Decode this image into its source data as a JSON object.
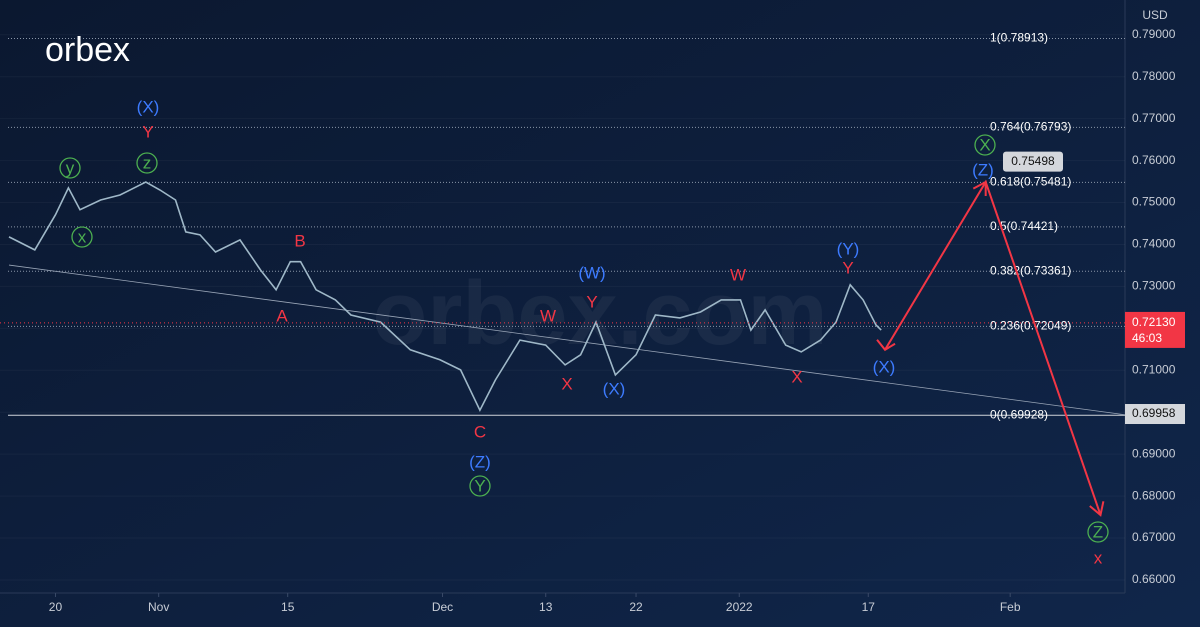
{
  "chart_data": {
    "type": "line",
    "logo": "orbex",
    "watermark": "orbex.com",
    "currency": "USD",
    "color": "#9fb8c8",
    "x": [
      -3.6,
      -1.6,
      0,
      1.0,
      1.9,
      3.5,
      5.0,
      7.0,
      8.1,
      9.3,
      10.1,
      11.2,
      12.4,
      14.3,
      15.9,
      17.1,
      18.2,
      19.0,
      20.2,
      21.7,
      22.9,
      25.2,
      27.5,
      29.8,
      31.4,
      32.9,
      34.1,
      36.0,
      38.0,
      39.5,
      40.7,
      41.9,
      43.4,
      45.0,
      46.5,
      48.4,
      50.0,
      51.6,
      53.1,
      53.9,
      55.0,
      56.6,
      57.8,
      59.3,
      60.5,
      61.6,
      62.6,
      63.6,
      64.0
    ],
    "values": [
      0.7418,
      0.7387,
      0.7471,
      0.7535,
      0.7483,
      0.7506,
      0.7518,
      0.7549,
      0.753,
      0.7506,
      0.743,
      0.7423,
      0.7382,
      0.7411,
      0.7339,
      0.7292,
      0.7359,
      0.7359,
      0.7292,
      0.7268,
      0.7232,
      0.7215,
      0.7149,
      0.7125,
      0.7101,
      0.7005,
      0.7077,
      0.7172,
      0.716,
      0.7113,
      0.7137,
      0.7215,
      0.7089,
      0.7137,
      0.7232,
      0.7225,
      0.7239,
      0.7268,
      0.7268,
      0.7196,
      0.7244,
      0.716,
      0.7144,
      0.7172,
      0.7215,
      0.7304,
      0.7268,
      0.7208,
      0.7196
    ],
    "xlim": [
      -4.3,
      82.9
    ],
    "xticks": [
      {
        "value": 0,
        "label": "20"
      },
      {
        "value": 8,
        "label": "Nov"
      },
      {
        "value": 18,
        "label": "15"
      },
      {
        "value": 30,
        "label": "Dec"
      },
      {
        "value": 38,
        "label": "13"
      },
      {
        "value": 45,
        "label": "22"
      },
      {
        "value": 53,
        "label": "2022"
      },
      {
        "value": 63,
        "label": "17"
      },
      {
        "value": 74,
        "label": "Feb"
      }
    ],
    "ylim": [
      0.6569,
      0.7983
    ],
    "yticks": [
      {
        "value": 0.79,
        "label": "0.79000"
      },
      {
        "value": 0.78,
        "label": "0.78000"
      },
      {
        "value": 0.77,
        "label": "0.77000"
      },
      {
        "value": 0.76,
        "label": "0.76000"
      },
      {
        "value": 0.75,
        "label": "0.75000"
      },
      {
        "value": 0.74,
        "label": "0.74000"
      },
      {
        "value": 0.73,
        "label": "0.73000"
      },
      {
        "value": 0.72,
        "label": "0.72000"
      },
      {
        "value": 0.71,
        "label": "0.71000"
      },
      {
        "value": 0.7,
        "label": "0.70000"
      },
      {
        "value": 0.69,
        "label": "0.69000"
      },
      {
        "value": 0.68,
        "label": "0.68000"
      },
      {
        "value": 0.67,
        "label": "0.67000"
      },
      {
        "value": 0.66,
        "label": "0.66000"
      }
    ],
    "levels": [
      {
        "value": 0.78913,
        "label": "1(0.78913)"
      },
      {
        "value": 0.76793,
        "label": "0.764(0.76793)"
      },
      {
        "value": 0.75481,
        "label": "0.618(0.75481)"
      },
      {
        "value": 0.74421,
        "label": "0.5(0.74421)"
      },
      {
        "value": 0.73361,
        "label": "0.382(0.73361)"
      },
      {
        "value": 0.72049,
        "label": "0.236(0.72049)"
      },
      {
        "value": 0.69928,
        "label": "0(0.69928)"
      }
    ],
    "trendline": {
      "x": [
        -3.6,
        82.9
      ],
      "values": [
        0.7351,
        0.6994
      ]
    },
    "projection": {
      "color": "#f23645",
      "x": [
        64.3,
        72.1,
        81.0
      ],
      "values": [
        0.7149,
        0.7549,
        0.6755
      ]
    },
    "last_price": {
      "value": 0.7213,
      "label": "0.72130"
    },
    "countdown": "46:03",
    "marker_price": {
      "value": 0.69958,
      "label": "0.69958"
    },
    "target_label": {
      "value": 0.75498,
      "label": "0.75498"
    },
    "wave_labels": [
      {
        "text": "(X)",
        "color": "#3d7bff"
      },
      {
        "text": "Y",
        "color": "#f23645"
      },
      {
        "text": "z",
        "color": "#4caf50"
      },
      {
        "text": "y",
        "color": "#4caf50"
      },
      {
        "text": "x",
        "color": "#4caf50"
      },
      {
        "text": "B",
        "color": "#f23645"
      },
      {
        "text": "A",
        "color": "#f23645"
      },
      {
        "text": "C",
        "color": "#f23645"
      },
      {
        "text": "(Z)",
        "color": "#3d7bff"
      },
      {
        "text": "Y",
        "color": "#4caf50"
      },
      {
        "text": "W",
        "color": "#f23645"
      },
      {
        "text": "X",
        "color": "#f23645"
      },
      {
        "text": "(W)",
        "color": "#3d7bff"
      },
      {
        "text": "Y",
        "color": "#f23645"
      },
      {
        "text": "(X)",
        "color": "#3d7bff"
      },
      {
        "text": "W",
        "color": "#f23645"
      },
      {
        "text": "X",
        "color": "#f23645"
      },
      {
        "text": "(Y)",
        "color": "#3d7bff"
      },
      {
        "text": "Y",
        "color": "#f23645"
      },
      {
        "text": "(X)",
        "color": "#3d7bff"
      },
      {
        "text": "X",
        "color": "#4caf50"
      },
      {
        "text": "(Z)",
        "color": "#3d7bff"
      },
      {
        "text": "Z",
        "color": "#4caf50"
      },
      {
        "text": "x",
        "color": "#f23645"
      }
    ]
  }
}
